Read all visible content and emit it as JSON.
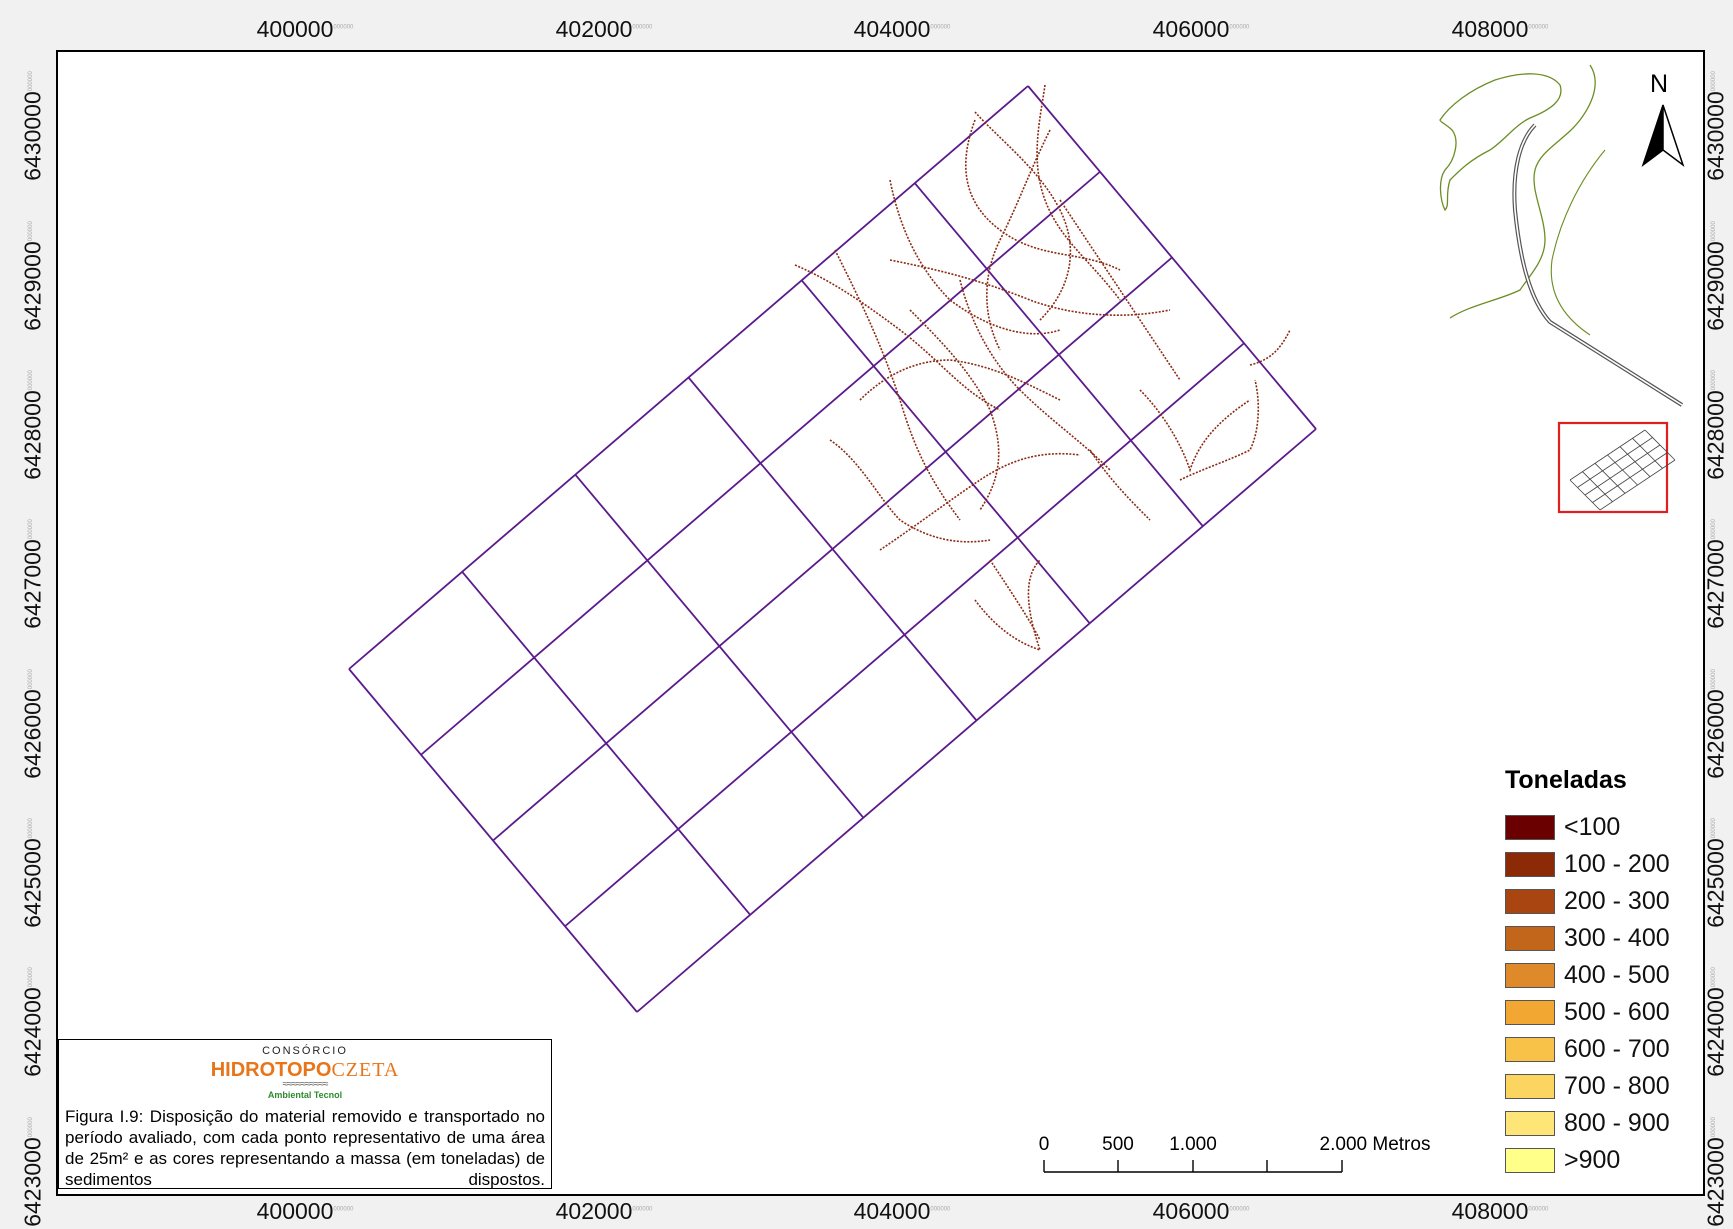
{
  "map": {
    "x_ticks": [
      "400000",
      "402000",
      "404000",
      "406000",
      "408000"
    ],
    "y_ticks": [
      "6430000",
      "6429000",
      "6428000",
      "6427000",
      "6426000",
      "6425000",
      "6424000",
      "6423000"
    ],
    "tick_suffix": "000000",
    "grid_color": "#5a1a8c",
    "track_color": "#8a2a12",
    "north_label": "N"
  },
  "legend": {
    "title": "Toneladas",
    "classes": [
      {
        "label": "<100",
        "color": "#6b0000"
      },
      {
        "label": "100 - 200",
        "color": "#8c2a07"
      },
      {
        "label": "200 - 300",
        "color": "#a94511"
      },
      {
        "label": "300 - 400",
        "color": "#c2661c"
      },
      {
        "label": "400 - 500",
        "color": "#de8a2a"
      },
      {
        "label": "500 - 600",
        "color": "#f2a733"
      },
      {
        "label": "600 - 700",
        "color": "#f7c247"
      },
      {
        "label": "700 - 800",
        "color": "#fbd55f"
      },
      {
        "label": "800 - 900",
        "color": "#fde677"
      },
      {
        "label": ">900",
        "color": "#ffff8a"
      }
    ]
  },
  "scale_bar": {
    "labels": [
      "0",
      "500",
      "1.000",
      "2.000 Metros"
    ]
  },
  "caption": {
    "logo_top": "CONSÓRCIO",
    "logo_left": "HIDROTOPO",
    "logo_right": "CZETA",
    "logo_sub": "Ambiental Tecnol",
    "text": "Figura I.9: Disposição do material removido e transportado no período avaliado, com cada ponto representativo de uma área de 25m² e as cores representando a massa (em toneladas) de sedimentos dispostos."
  }
}
